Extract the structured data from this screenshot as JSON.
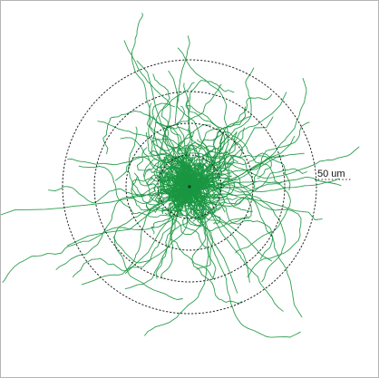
{
  "figure": {
    "scale_bar_label": "50 um",
    "track_color": "#1a9641",
    "ring_color": "#222222",
    "background_color": "#ffffff",
    "ring_count": 4
  }
}
